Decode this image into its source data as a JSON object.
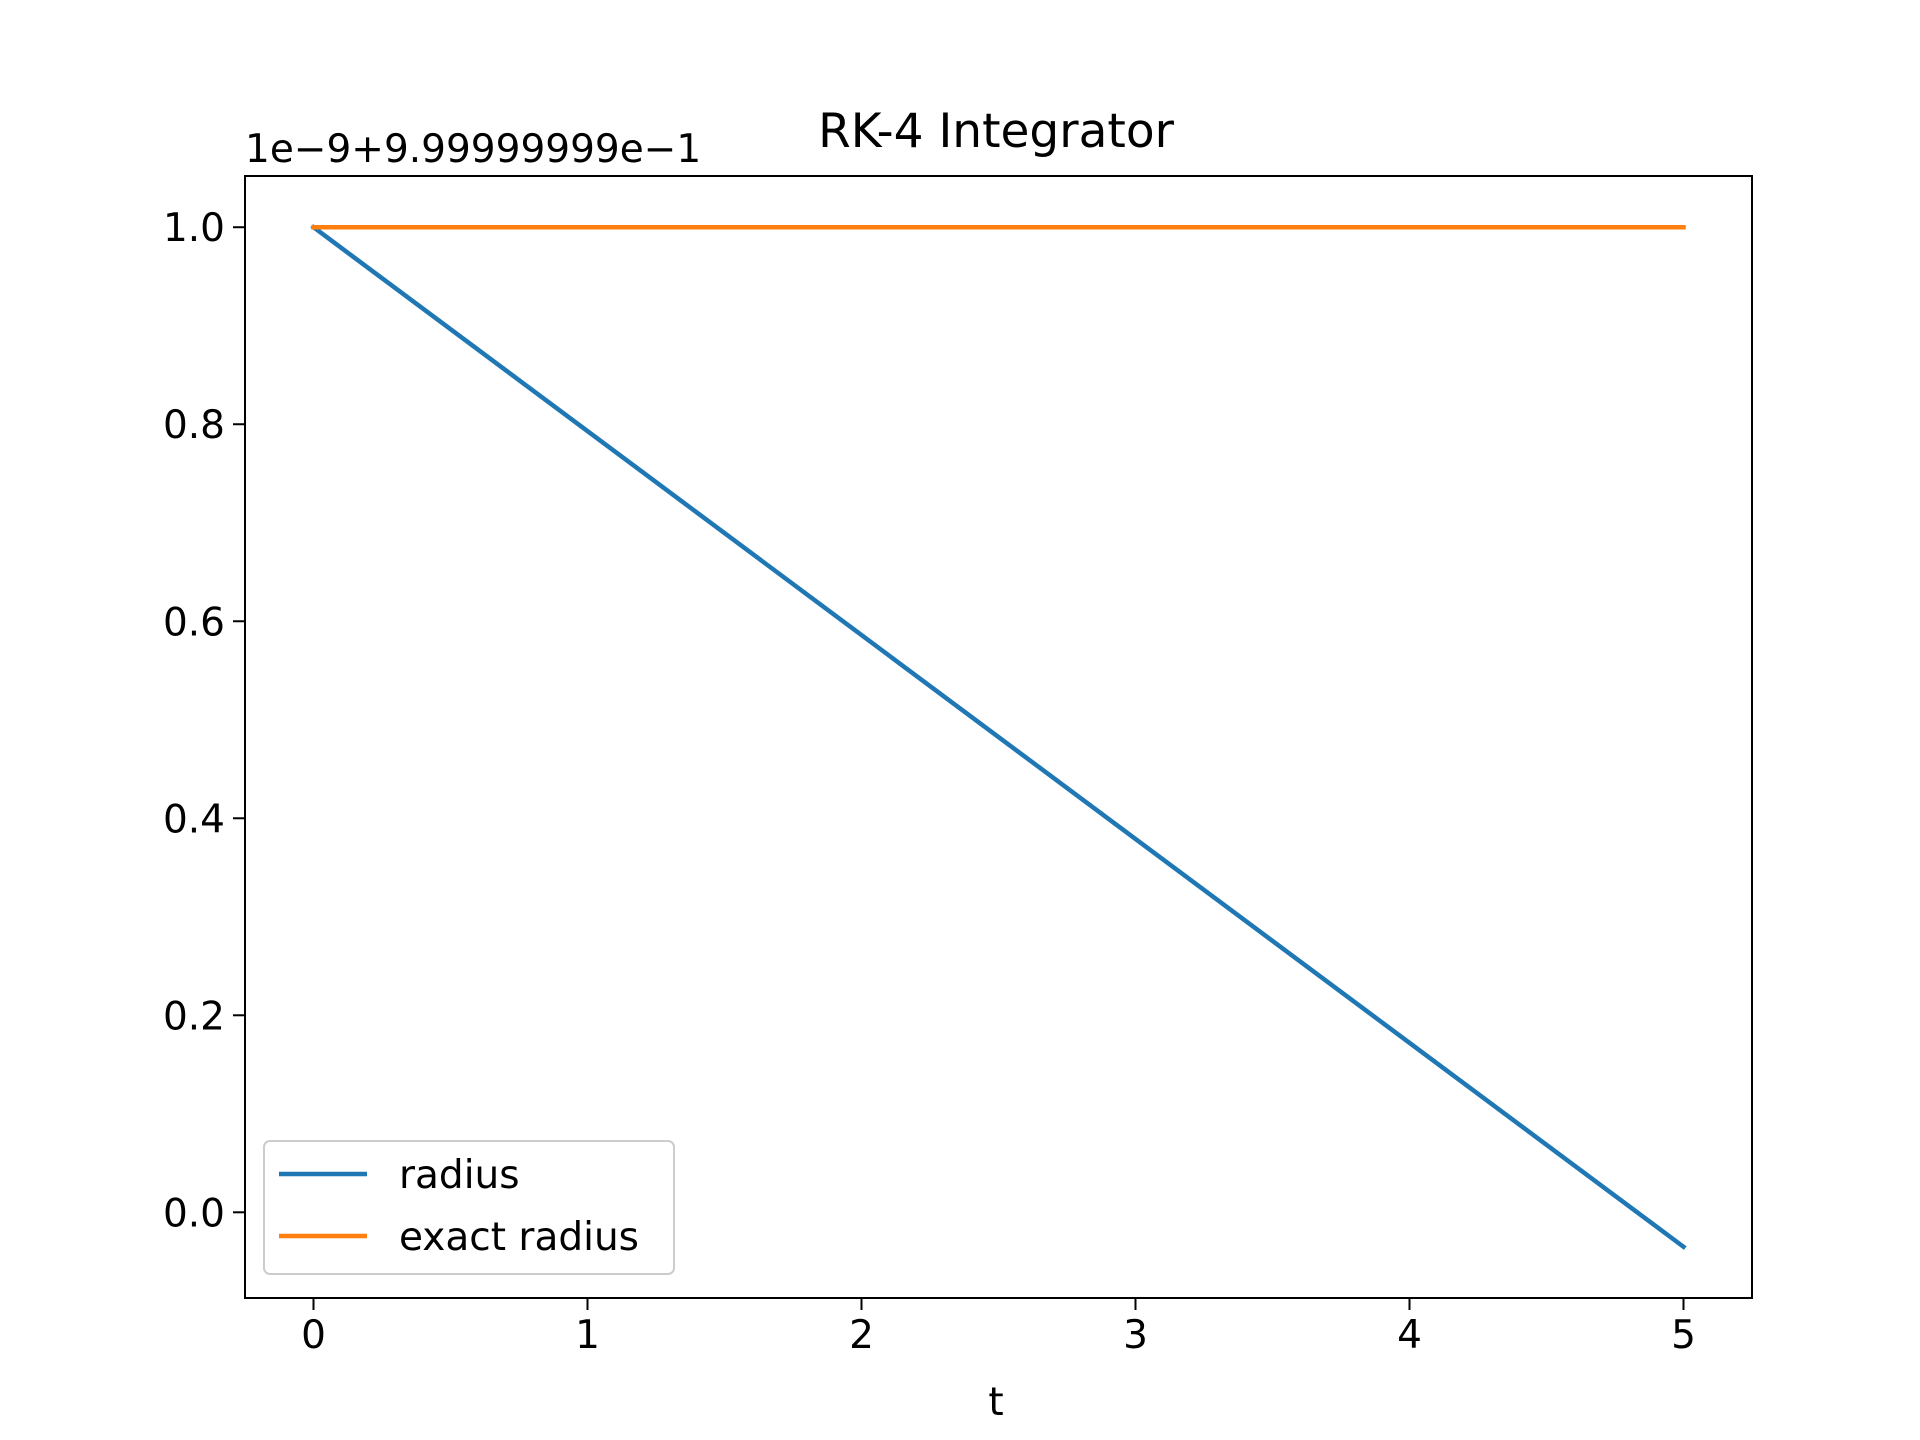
{
  "chart_data": {
    "type": "line",
    "title": "RK-4 Integrator",
    "xlabel": "t",
    "ylabel": "",
    "y_offset_label": "1e−9+9.99999999e−1",
    "xlim": [
      -0.25,
      5.25
    ],
    "ylim": [
      -0.087,
      1.052
    ],
    "xticks": [
      0,
      1,
      2,
      3,
      4,
      5
    ],
    "xtick_labels": [
      "0",
      "1",
      "2",
      "3",
      "4",
      "5"
    ],
    "yticks": [
      0.0,
      0.2,
      0.4,
      0.6,
      0.8,
      1.0
    ],
    "ytick_labels": [
      "0.0",
      "0.2",
      "0.4",
      "0.6",
      "0.8",
      "1.0"
    ],
    "grid": false,
    "legend_position": "lower-left",
    "series": [
      {
        "name": "radius",
        "color": "#1f77b4",
        "x": [
          0,
          5
        ],
        "y": [
          1.0,
          -0.035
        ]
      },
      {
        "name": "exact radius",
        "color": "#ff7f0e",
        "x": [
          0,
          5
        ],
        "y": [
          1.0,
          1.0
        ]
      }
    ]
  }
}
